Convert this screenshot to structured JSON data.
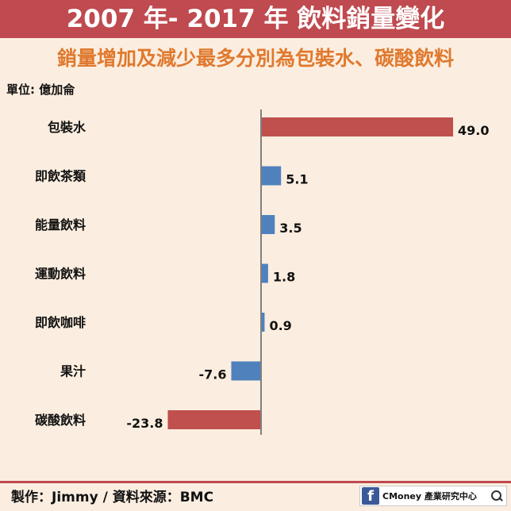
{
  "header": {
    "title": "2007 年- 2017 年 飲料銷量變化",
    "subtitle": "銷量增加及減少最多分別為包裝水、碳酸飲料",
    "unit_label": "單位: 億加侖"
  },
  "colors": {
    "title_bg": "#bf4a4f",
    "subtitle": "#e0792e",
    "background": "#fbeee0",
    "bar_extreme": "#c0504d",
    "bar_normal": "#4f81bd"
  },
  "chart_data": {
    "type": "bar",
    "orientation": "horizontal",
    "title": "2007 年- 2017 年 飲料銷量變化",
    "ylabel": "單位: 億加侖",
    "categories": [
      "包裝水",
      "即飲茶類",
      "能量飲料",
      "運動飲料",
      "即飲咖啡",
      "果汁",
      "碳酸飲料"
    ],
    "values": [
      49.0,
      5.1,
      3.5,
      1.8,
      0.9,
      -7.6,
      -23.8
    ],
    "value_labels": [
      "49.0",
      "5.1",
      "3.5",
      "1.8",
      "0.9",
      "-7.6",
      "-23.8"
    ],
    "highlight": [
      "extreme",
      "normal",
      "normal",
      "normal",
      "normal",
      "normal",
      "extreme"
    ],
    "xlim": [
      -23.8,
      49.0
    ],
    "grid": false,
    "legend": "none"
  },
  "footer": {
    "credit": "製作：Jimmy / 資料來源：BMC",
    "brand": "CMoney 產業研究中心",
    "brand_icon": "facebook-icon",
    "search_icon": "search-icon"
  }
}
